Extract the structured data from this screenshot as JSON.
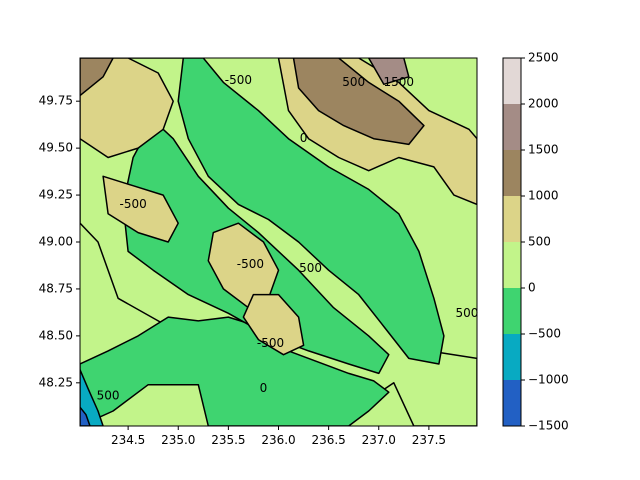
{
  "chart_data": {
    "type": "heatmap",
    "subtype": "filled-contour",
    "title": "",
    "xlabel": "",
    "ylabel": "",
    "xlim": [
      234.02,
      237.98
    ],
    "ylim": [
      48.02,
      49.98
    ],
    "x_ticks": [
      "234.5",
      "235.0",
      "235.5",
      "236.0",
      "236.5",
      "237.0",
      "237.5"
    ],
    "x_tick_values": [
      234.5,
      235.0,
      235.5,
      236.0,
      236.5,
      237.0,
      237.5
    ],
    "y_ticks": [
      "48.25",
      "48.50",
      "48.75",
      "49.00",
      "49.25",
      "49.50",
      "49.75"
    ],
    "y_tick_values": [
      48.25,
      48.5,
      48.75,
      49.0,
      49.25,
      49.5,
      49.75
    ],
    "colorbar": {
      "levels": [
        -1500,
        -1000,
        -500,
        0,
        500,
        1000,
        1500,
        2000,
        2500
      ],
      "tick_labels": [
        "−1500",
        "−1000",
        "−500",
        "0",
        "500",
        "1000",
        "1500",
        "2000",
        "2500"
      ],
      "colors": [
        "#2260c4",
        "#08aac2",
        "#3fd470",
        "#c2f48a",
        "#dcd488",
        "#9c8560",
        "#a48c86",
        "#e2d8d6"
      ]
    },
    "contour_labels": [
      {
        "text": "-500",
        "x": 235.6,
        "y": 49.86
      },
      {
        "text": "-500",
        "x": 234.55,
        "y": 49.2
      },
      {
        "text": "-500",
        "x": 235.72,
        "y": 48.88
      },
      {
        "text": "500",
        "x": 236.32,
        "y": 48.86
      },
      {
        "text": "-500",
        "x": 235.92,
        "y": 48.46
      },
      {
        "text": "500",
        "x": 234.3,
        "y": 48.18
      },
      {
        "text": "0",
        "x": 235.85,
        "y": 48.22
      },
      {
        "text": "0",
        "x": 236.25,
        "y": 49.55
      },
      {
        "text": "500",
        "x": 236.75,
        "y": 49.85
      },
      {
        "text": "1500",
        "x": 237.2,
        "y": 49.85
      },
      {
        "text": "500",
        "x": 237.88,
        "y": 48.62
      }
    ],
    "regions": [
      {
        "level_band": "0 to 500",
        "color": "#c2f48a",
        "polygon": [
          [
            234.02,
            49.98
          ],
          [
            235.25,
            49.98
          ],
          [
            235.05,
            49.72
          ],
          [
            235.7,
            49.38
          ],
          [
            236.3,
            49.12
          ],
          [
            236.8,
            48.9
          ],
          [
            237.2,
            48.62
          ],
          [
            237.5,
            48.42
          ],
          [
            237.98,
            48.38
          ],
          [
            237.98,
            48.02
          ],
          [
            237.35,
            48.02
          ],
          [
            237.15,
            48.25
          ],
          [
            236.9,
            48.16
          ],
          [
            236.7,
            48.02
          ],
          [
            235.3,
            48.02
          ],
          [
            235.3,
            48.34
          ],
          [
            234.9,
            48.55
          ],
          [
            234.4,
            48.7
          ],
          [
            234.2,
            49.0
          ],
          [
            234.02,
            49.1
          ]
        ]
      },
      {
        "level_band": "-500 to 0",
        "color": "#3fd470",
        "polygon": [
          [
            234.02,
            48.02
          ],
          [
            234.02,
            48.35
          ],
          [
            234.3,
            48.42
          ],
          [
            234.6,
            48.5
          ],
          [
            234.9,
            48.6
          ],
          [
            235.2,
            48.58
          ],
          [
            235.5,
            48.6
          ],
          [
            235.8,
            48.55
          ],
          [
            236.1,
            48.42
          ],
          [
            236.4,
            48.36
          ],
          [
            236.7,
            48.3
          ],
          [
            236.95,
            48.26
          ],
          [
            237.1,
            48.2
          ],
          [
            236.9,
            48.1
          ],
          [
            236.7,
            48.02
          ],
          [
            235.3,
            48.02
          ],
          [
            235.2,
            48.24
          ],
          [
            234.7,
            48.24
          ],
          [
            234.35,
            48.1
          ]
        ]
      },
      {
        "level_band": "-500 to 0",
        "color": "#3fd470",
        "polygon": [
          [
            235.05,
            49.98
          ],
          [
            235.25,
            49.98
          ],
          [
            235.45,
            49.85
          ],
          [
            235.8,
            49.7
          ],
          [
            236.1,
            49.55
          ],
          [
            236.5,
            49.4
          ],
          [
            236.9,
            49.28
          ],
          [
            237.2,
            49.15
          ],
          [
            237.4,
            48.95
          ],
          [
            237.55,
            48.7
          ],
          [
            237.65,
            48.5
          ],
          [
            237.6,
            48.35
          ],
          [
            237.3,
            48.38
          ],
          [
            237.05,
            48.55
          ],
          [
            236.8,
            48.72
          ],
          [
            236.5,
            48.85
          ],
          [
            236.2,
            49.0
          ],
          [
            235.9,
            49.12
          ],
          [
            235.6,
            49.2
          ],
          [
            235.3,
            49.35
          ],
          [
            235.1,
            49.55
          ],
          [
            235.0,
            49.75
          ]
        ]
      },
      {
        "level_band": "-500 to 0",
        "color": "#3fd470",
        "polygon": [
          [
            234.75,
            49.65
          ],
          [
            234.95,
            49.55
          ],
          [
            235.2,
            49.35
          ],
          [
            235.5,
            49.18
          ],
          [
            235.8,
            49.05
          ],
          [
            236.2,
            48.85
          ],
          [
            236.55,
            48.65
          ],
          [
            236.9,
            48.5
          ],
          [
            237.1,
            48.4
          ],
          [
            237.0,
            48.3
          ],
          [
            236.7,
            48.35
          ],
          [
            236.3,
            48.42
          ],
          [
            235.9,
            48.5
          ],
          [
            235.5,
            48.62
          ],
          [
            235.1,
            48.72
          ],
          [
            234.75,
            48.85
          ],
          [
            234.5,
            48.95
          ],
          [
            234.45,
            49.2
          ],
          [
            234.55,
            49.45
          ]
        ]
      },
      {
        "level_band": "500 to 1000",
        "color": "#dcd488",
        "polygon": [
          [
            234.02,
            49.55
          ],
          [
            234.3,
            49.45
          ],
          [
            234.6,
            49.5
          ],
          [
            234.85,
            49.6
          ],
          [
            234.95,
            49.75
          ],
          [
            234.8,
            49.9
          ],
          [
            234.5,
            49.98
          ],
          [
            234.02,
            49.98
          ]
        ]
      },
      {
        "level_band": "500 to 1000",
        "color": "#dcd488",
        "polygon": [
          [
            234.25,
            49.35
          ],
          [
            234.55,
            49.3
          ],
          [
            234.85,
            49.25
          ],
          [
            235.0,
            49.1
          ],
          [
            234.9,
            49.0
          ],
          [
            234.6,
            49.05
          ],
          [
            234.3,
            49.15
          ]
        ]
      },
      {
        "level_band": "500 to 1000",
        "color": "#dcd488",
        "polygon": [
          [
            235.35,
            49.05
          ],
          [
            235.6,
            49.1
          ],
          [
            235.85,
            49.0
          ],
          [
            236.0,
            48.85
          ],
          [
            235.9,
            48.7
          ],
          [
            235.7,
            48.65
          ],
          [
            235.45,
            48.75
          ],
          [
            235.3,
            48.9
          ]
        ]
      },
      {
        "level_band": "500 to 1000",
        "color": "#dcd488",
        "polygon": [
          [
            235.75,
            48.72
          ],
          [
            236.0,
            48.72
          ],
          [
            236.2,
            48.6
          ],
          [
            236.25,
            48.45
          ],
          [
            236.05,
            48.4
          ],
          [
            235.8,
            48.48
          ],
          [
            235.65,
            48.6
          ]
        ]
      },
      {
        "level_band": "500 to 1000",
        "color": "#dcd488",
        "polygon": [
          [
            236.0,
            49.98
          ],
          [
            236.8,
            49.98
          ],
          [
            237.2,
            49.85
          ],
          [
            237.5,
            49.7
          ],
          [
            237.9,
            49.6
          ],
          [
            237.98,
            49.55
          ],
          [
            237.98,
            49.2
          ],
          [
            237.75,
            49.25
          ],
          [
            237.55,
            49.4
          ],
          [
            237.2,
            49.45
          ],
          [
            236.9,
            49.38
          ],
          [
            236.6,
            49.45
          ],
          [
            236.3,
            49.55
          ],
          [
            236.1,
            49.7
          ]
        ]
      },
      {
        "level_band": "1000 to 1500",
        "color": "#9c8560",
        "polygon": [
          [
            236.15,
            49.98
          ],
          [
            236.6,
            49.98
          ],
          [
            236.9,
            49.85
          ],
          [
            237.2,
            49.75
          ],
          [
            237.45,
            49.62
          ],
          [
            237.3,
            49.52
          ],
          [
            236.95,
            49.55
          ],
          [
            236.65,
            49.62
          ],
          [
            236.4,
            49.7
          ],
          [
            236.2,
            49.82
          ]
        ]
      },
      {
        "level_band": "1000 to 1500",
        "color": "#9c8560",
        "polygon": [
          [
            234.02,
            49.78
          ],
          [
            234.25,
            49.88
          ],
          [
            234.35,
            49.98
          ],
          [
            234.02,
            49.98
          ]
        ]
      },
      {
        "level_band": "1500 to 2000",
        "color": "#a48c86",
        "polygon": [
          [
            236.9,
            49.98
          ],
          [
            237.25,
            49.98
          ],
          [
            237.3,
            49.88
          ],
          [
            237.05,
            49.84
          ]
        ]
      },
      {
        "level_band": "-1000 to -500",
        "color": "#08aac2",
        "polygon": [
          [
            234.02,
            48.02
          ],
          [
            234.02,
            48.32
          ],
          [
            234.1,
            48.22
          ],
          [
            234.2,
            48.1
          ],
          [
            234.25,
            48.02
          ]
        ]
      },
      {
        "level_band": "-1500 to -1000",
        "color": "#2260c4",
        "polygon": [
          [
            234.02,
            48.02
          ],
          [
            234.02,
            48.12
          ],
          [
            234.08,
            48.08
          ],
          [
            234.12,
            48.02
          ]
        ]
      }
    ]
  }
}
